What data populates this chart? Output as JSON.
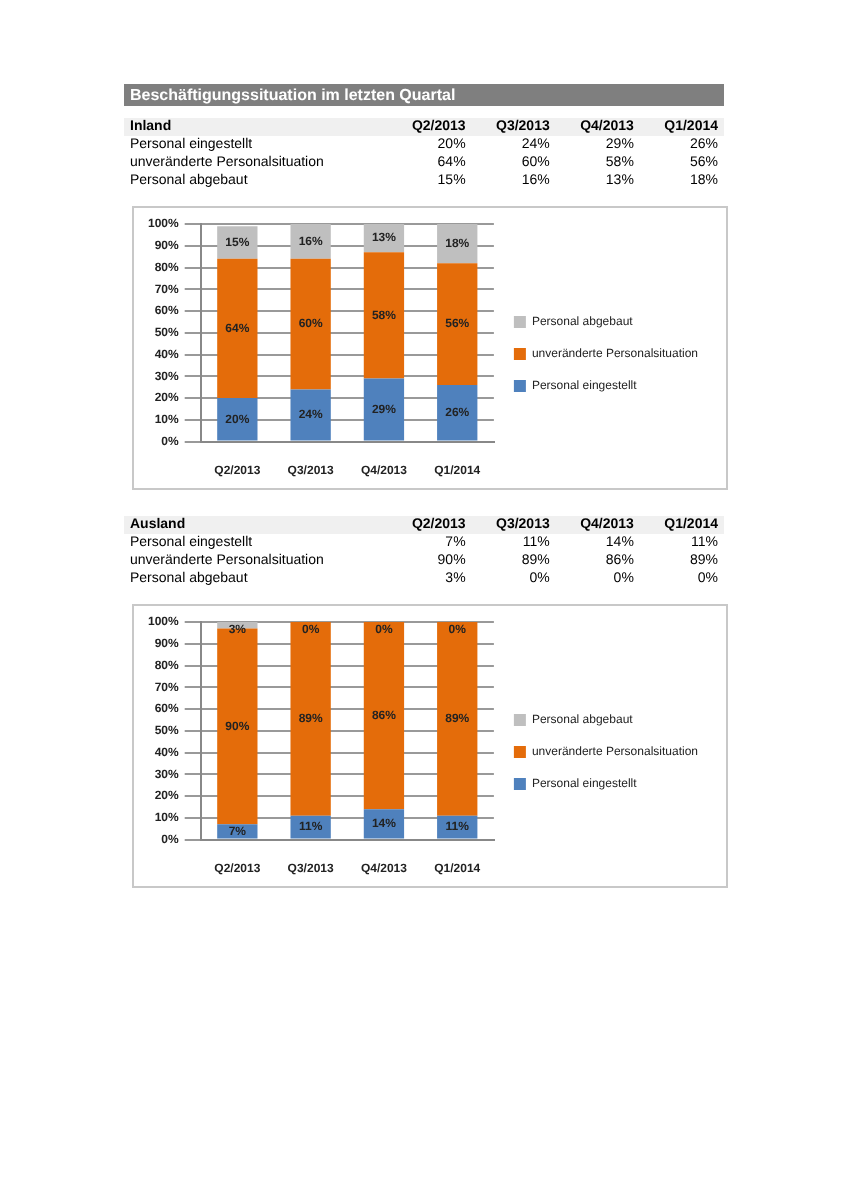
{
  "chart_data": [
    {
      "type": "bar",
      "title": "Beschäftigungssituation im letzten Quartal",
      "subtitle": "Inland",
      "stacked": true,
      "grid": "y",
      "legend": "right",
      "categories": [
        "Q2/2013",
        "Q3/2013",
        "Q4/2013",
        "Q1/2014"
      ],
      "ylim": [
        0,
        100
      ],
      "yticks": [
        {
          "value": 0,
          "label": "0%"
        },
        {
          "value": 10,
          "label": "10%"
        },
        {
          "value": 20,
          "label": "20%"
        },
        {
          "value": 30,
          "label": "30%"
        },
        {
          "value": 40,
          "label": "40%"
        },
        {
          "value": 50,
          "label": "50%"
        },
        {
          "value": 60,
          "label": "60%"
        },
        {
          "value": 70,
          "label": "70%"
        },
        {
          "value": 80,
          "label": "80%"
        },
        {
          "value": 90,
          "label": "90%"
        },
        {
          "value": 100,
          "label": "100%"
        }
      ],
      "series": [
        {
          "name": "Personal eingestellt",
          "color": "#4f81bd",
          "values": [
            20,
            24,
            29,
            26
          ],
          "value_labels": [
            "20%",
            "24%",
            "29%",
            "26%"
          ]
        },
        {
          "name": "unveränderte Personalsituation",
          "color": "#e46c0a",
          "values": [
            64,
            60,
            58,
            56
          ],
          "value_labels": [
            "64%",
            "60%",
            "58%",
            "56%"
          ]
        },
        {
          "name": "Personal abgebaut",
          "color": "#bfbfbf",
          "values": [
            15,
            16,
            13,
            18
          ],
          "value_labels": [
            "15%",
            "16%",
            "13%",
            "18%"
          ]
        }
      ]
    },
    {
      "type": "bar",
      "title": "Ausland",
      "stacked": true,
      "grid": "y",
      "legend": "right",
      "categories": [
        "Q2/2013",
        "Q3/2013",
        "Q4/2013",
        "Q1/2014"
      ],
      "ylim": [
        0,
        100
      ],
      "yticks": [
        {
          "value": 0,
          "label": "0%"
        },
        {
          "value": 10,
          "label": "10%"
        },
        {
          "value": 20,
          "label": "20%"
        },
        {
          "value": 30,
          "label": "30%"
        },
        {
          "value": 40,
          "label": "40%"
        },
        {
          "value": 50,
          "label": "50%"
        },
        {
          "value": 60,
          "label": "60%"
        },
        {
          "value": 70,
          "label": "70%"
        },
        {
          "value": 80,
          "label": "80%"
        },
        {
          "value": 90,
          "label": "90%"
        },
        {
          "value": 100,
          "label": "100%"
        }
      ],
      "series": [
        {
          "name": "Personal eingestellt",
          "color": "#4f81bd",
          "values": [
            7,
            11,
            14,
            11
          ],
          "value_labels": [
            "7%",
            "11%",
            "14%",
            "11%"
          ]
        },
        {
          "name": "unveränderte Personalsituation",
          "color": "#e46c0a",
          "values": [
            90,
            89,
            86,
            89
          ],
          "value_labels": [
            "90%",
            "89%",
            "86%",
            "89%"
          ]
        },
        {
          "name": "Personal abgebaut",
          "color": "#bfbfbf",
          "values": [
            3,
            0,
            0,
            0
          ],
          "value_labels": [
            "3%",
            "0%",
            "0%",
            "0%"
          ]
        }
      ]
    }
  ]
}
